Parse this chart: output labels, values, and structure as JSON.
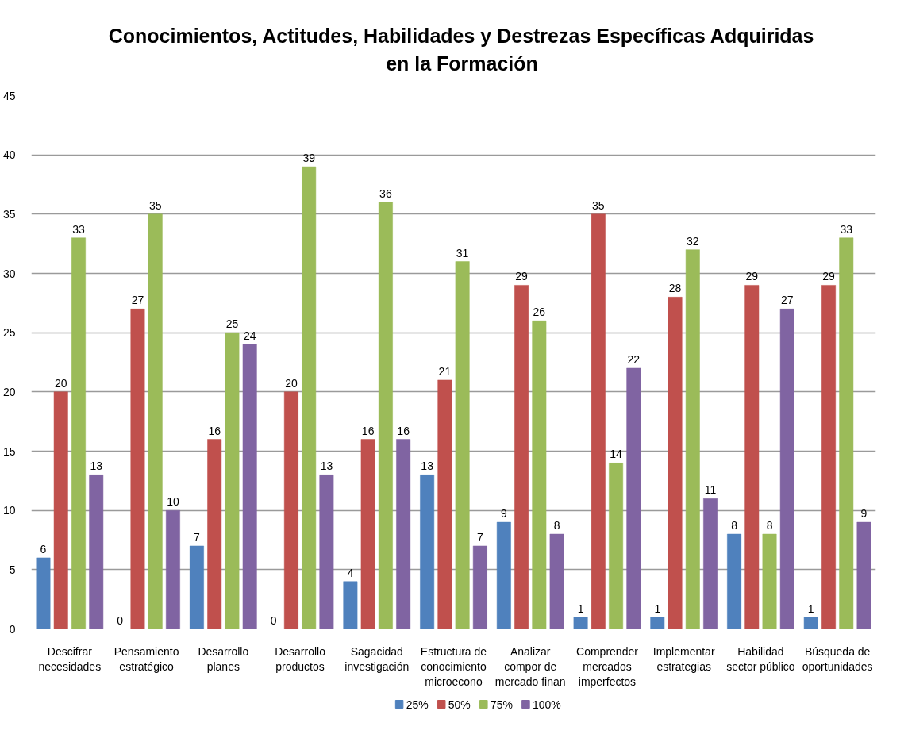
{
  "chart_data": {
    "type": "bar",
    "title": "Conocimientos, Actitudes, Habilidades y Destrezas Específicas Adquiridas\nen la Formación",
    "categories": [
      "Descifrar\nnecesidades",
      "Pensamiento\nestratégico",
      "Desarrollo\nplanes",
      "Desarrollo\nproductos",
      "Sagacidad\ninvestigación",
      "Estructura de\nconocimiento\nmicroecono",
      "Analizar\ncompor de\nmercado finan",
      "Comprender\nmercados\nimperfectos",
      "Implementar\nestrategias",
      "Habilidad\nsector público",
      "Búsqueda de\noportunidades"
    ],
    "series": [
      {
        "name": "25%",
        "color": "#4f81bd",
        "values": [
          6,
          0,
          7,
          0,
          4,
          13,
          9,
          1,
          1,
          8,
          1
        ]
      },
      {
        "name": "50%",
        "color": "#c0504d",
        "values": [
          20,
          27,
          16,
          20,
          16,
          21,
          29,
          35,
          28,
          29,
          29
        ]
      },
      {
        "name": "75%",
        "color": "#9bbb59",
        "values": [
          33,
          35,
          25,
          39,
          36,
          31,
          26,
          14,
          32,
          8,
          33
        ]
      },
      {
        "name": "100%",
        "color": "#8064a2",
        "values": [
          13,
          10,
          24,
          13,
          16,
          7,
          8,
          22,
          11,
          27,
          9
        ]
      }
    ],
    "ylim": [
      0,
      45
    ],
    "yticks": [
      0,
      5,
      10,
      15,
      20,
      25,
      30,
      35,
      40,
      45
    ],
    "grid": "y",
    "legend": "bottom",
    "data_labels": true
  }
}
